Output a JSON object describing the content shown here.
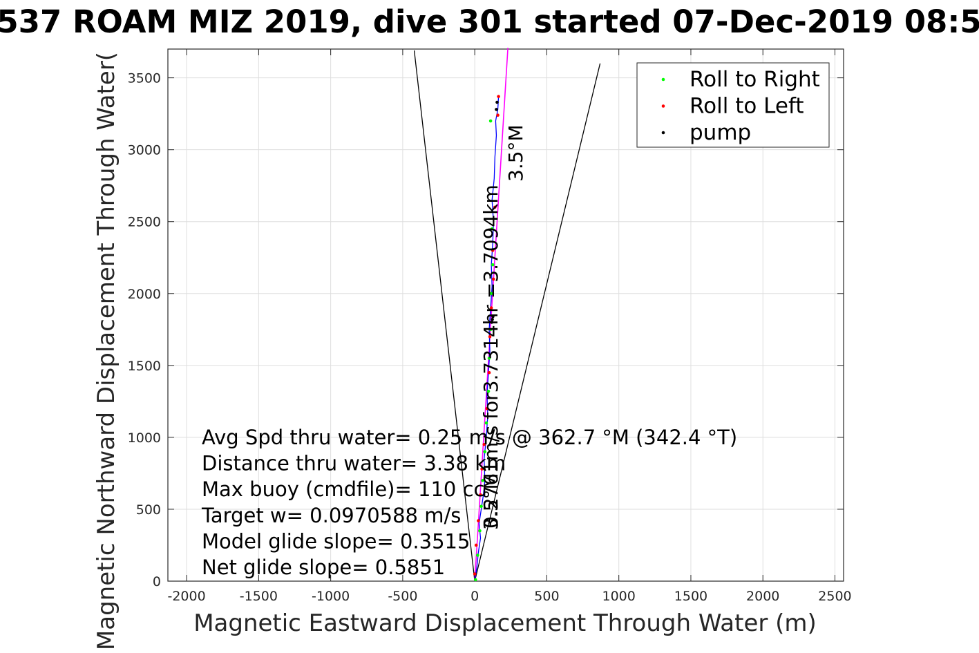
{
  "chart_data": {
    "type": "scatter",
    "title": "537 ROAM MIZ 2019, dive 301 started 07-Dec-2019 08:5",
    "xlabel": "Magnetic Eastward Displacement Through Water (m)",
    "ylabel": "Magnetic Northward Displacement Through Water(",
    "xlim": [
      -2130,
      2560
    ],
    "ylim": [
      0,
      3700
    ],
    "xticks": [
      -2000,
      -1500,
      -1000,
      -500,
      0,
      500,
      1000,
      1500,
      2000,
      2500
    ],
    "yticks": [
      0,
      500,
      1000,
      1500,
      2000,
      2500,
      3000,
      3500
    ],
    "grid": true,
    "legend_position": "top-right",
    "legend": [
      {
        "label": "Roll to Right",
        "color": "#00ff00"
      },
      {
        "label": "Roll to Left",
        "color": "#ff0000"
      },
      {
        "label": "pump",
        "color": "#000000"
      }
    ],
    "track": {
      "color": "#0000ff",
      "x": [
        0,
        15,
        25,
        40,
        30,
        45,
        60,
        70,
        65,
        80,
        90,
        85,
        95,
        105,
        100,
        110,
        120,
        115,
        125,
        130,
        120,
        135,
        140,
        150,
        145,
        160,
        165
      ],
      "y": [
        0,
        100,
        200,
        300,
        400,
        500,
        600,
        700,
        850,
        1000,
        1150,
        1300,
        1450,
        1600,
        1750,
        1900,
        2050,
        2200,
        2350,
        2500,
        2650,
        2800,
        2950,
        3100,
        3200,
        3280,
        3370
      ]
    },
    "roll_right": {
      "x": [
        5,
        20,
        35,
        45,
        55,
        70,
        80,
        95,
        100,
        110,
        115,
        125,
        120,
        110
      ],
      "y": [
        10,
        180,
        350,
        520,
        700,
        900,
        1100,
        1320,
        1550,
        1750,
        2000,
        2200,
        2450,
        3200
      ]
    },
    "roll_left": {
      "x": [
        0,
        10,
        25,
        40,
        50,
        65,
        85,
        100,
        105,
        115,
        130,
        125,
        140,
        160,
        165
      ],
      "y": [
        50,
        250,
        420,
        600,
        780,
        950,
        1200,
        1450,
        1700,
        1900,
        2100,
        2300,
        2600,
        3240,
        3370
      ]
    },
    "pump": {
      "x": [
        118,
        122,
        126,
        150,
        155
      ],
      "y": [
        1800,
        1820,
        1840,
        3280,
        3330
      ]
    },
    "heading_line": {
      "color": "#ff00ff",
      "x": [
        0,
        230
      ],
      "y": [
        0,
        3709
      ]
    },
    "cone_left": {
      "x": [
        0,
        -420
      ],
      "y": [
        0,
        3690
      ]
    },
    "cone_right": {
      "x": [
        0,
        870
      ],
      "y": [
        0,
        3600
      ]
    },
    "annotations": {
      "avg_speed_rotated": "0.2761m/s for3.7314hr =3.7094km",
      "heading_top": "3.5°M",
      "heading_mid": "3.5°M",
      "stats": [
        "Avg Spd thru water=  0.25 m/s @ 362.7 °M (342.4 °T)",
        "Distance thru water=  3.38 km",
        "Max buoy (cmdfile)= 110 cc",
        "Target w= 0.0970588 m/s",
        "Model glide slope= 0.3515",
        "Net glide slope= 0.5851"
      ]
    }
  }
}
